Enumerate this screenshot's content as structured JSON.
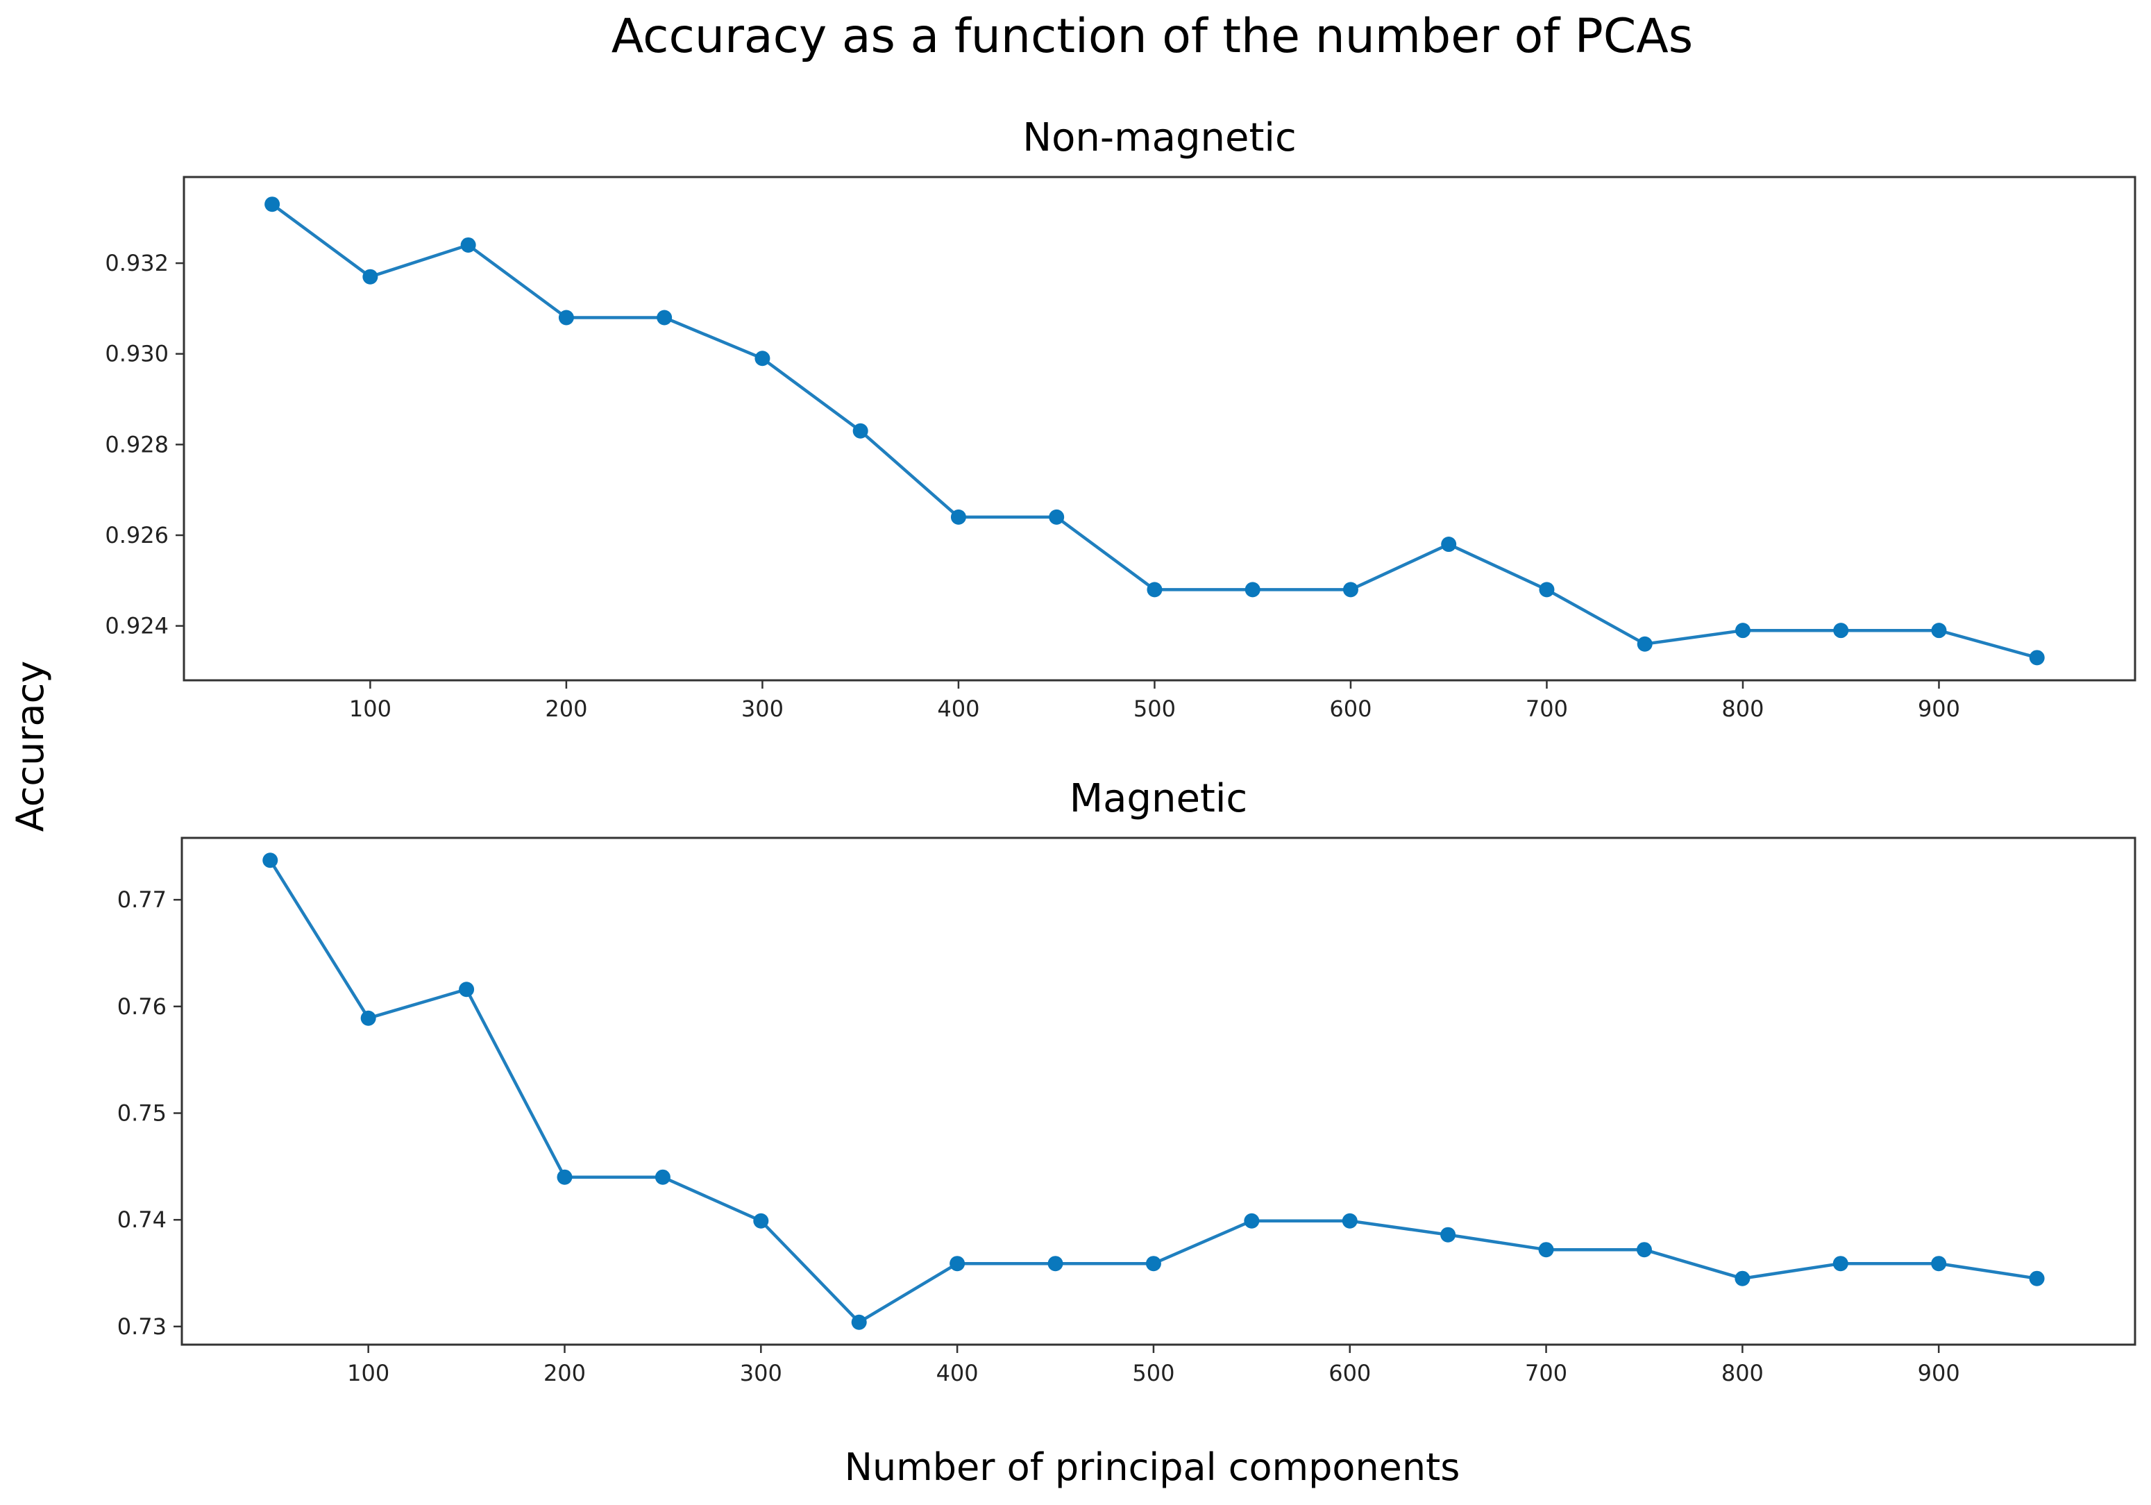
{
  "title": "Accuracy as a function of the number of PCAs",
  "ylabel": "Accuracy",
  "xlabel": "Number of principal components",
  "colors": {
    "series": "#1f7fbf",
    "marker": "#0a78bd"
  },
  "chart_data": [
    {
      "type": "line",
      "title": "Non-magnetic",
      "x": [
        50,
        100,
        150,
        200,
        250,
        300,
        350,
        400,
        450,
        500,
        550,
        600,
        650,
        700,
        750,
        800,
        850,
        900,
        950
      ],
      "values": [
        0.9333,
        0.9317,
        0.9324,
        0.9308,
        0.9308,
        0.9299,
        0.9283,
        0.9264,
        0.9264,
        0.9248,
        0.9248,
        0.9248,
        0.9258,
        0.9248,
        0.9236,
        0.9239,
        0.9239,
        0.9239,
        0.9233
      ],
      "xlim": [
        5,
        1000
      ],
      "ylim": [
        0.9228,
        0.9339
      ],
      "xticks": [
        100,
        200,
        300,
        400,
        500,
        600,
        700,
        800,
        900
      ],
      "xtick_labels": [
        "100",
        "200",
        "300",
        "400",
        "500",
        "600",
        "700",
        "800",
        "900"
      ],
      "yticks": [
        0.924,
        0.926,
        0.928,
        0.93,
        0.932
      ],
      "ytick_labels": [
        "0.924",
        "0.926",
        "0.928",
        "0.930",
        "0.932"
      ],
      "grid": false
    },
    {
      "type": "line",
      "title": "Magnetic",
      "x": [
        50,
        100,
        150,
        200,
        250,
        300,
        350,
        400,
        450,
        500,
        550,
        600,
        650,
        700,
        750,
        800,
        850,
        900,
        950
      ],
      "values": [
        0.7737,
        0.7589,
        0.7616,
        0.744,
        0.744,
        0.7399,
        0.7304,
        0.7359,
        0.7359,
        0.7359,
        0.7399,
        0.7399,
        0.7386,
        0.7372,
        0.7372,
        0.7345,
        0.7359,
        0.7359,
        0.7345
      ],
      "xlim": [
        5,
        1000
      ],
      "ylim": [
        0.7283,
        0.7758
      ],
      "xticks": [
        100,
        200,
        300,
        400,
        500,
        600,
        700,
        800,
        900
      ],
      "xtick_labels": [
        "100",
        "200",
        "300",
        "400",
        "500",
        "600",
        "700",
        "800",
        "900"
      ],
      "yticks": [
        0.73,
        0.74,
        0.75,
        0.76,
        0.77
      ],
      "ytick_labels": [
        "0.73",
        "0.74",
        "0.75",
        "0.76",
        "0.77"
      ],
      "grid": false
    }
  ]
}
